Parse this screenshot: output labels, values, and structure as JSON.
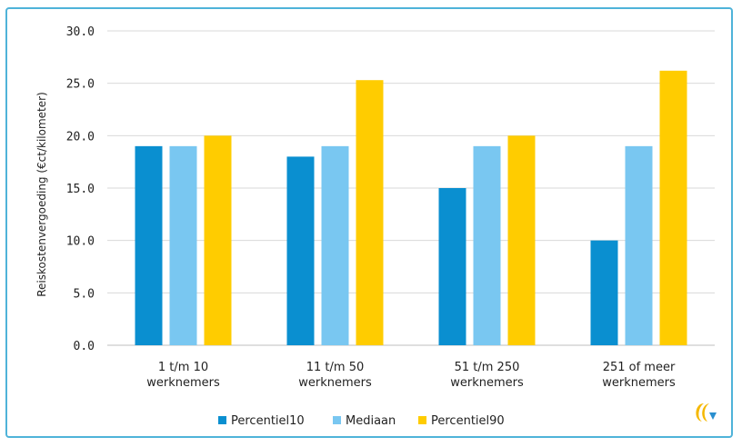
{
  "chart_data": {
    "type": "bar",
    "ylabel": "Reiskostenvergoeding (€ct/kilometer)",
    "xlabel": "",
    "ylim": [
      0,
      30
    ],
    "yticks": [
      "0.0",
      "5.0",
      "10.0",
      "15.0",
      "20.0",
      "25.0",
      "30.0"
    ],
    "categories": [
      [
        "1 t/m 10",
        "werknemers"
      ],
      [
        "11 t/m 50",
        "werknemers"
      ],
      [
        "51 t/m 250",
        "werknemers"
      ],
      [
        "251 of meer",
        "werknemers"
      ]
    ],
    "series": [
      {
        "name": "Percentiel10",
        "color": "#0a8fd0",
        "values": [
          19,
          18,
          15,
          10
        ]
      },
      {
        "name": "Mediaan",
        "color": "#79c7f1",
        "values": [
          19,
          19,
          19,
          19
        ]
      },
      {
        "name": "Percentiel90",
        "color": "#ffcc00",
        "values": [
          20,
          25.3,
          20,
          26.2
        ]
      }
    ],
    "grid": true,
    "legend": "bottom"
  },
  "logo": {
    "name": "brand-logo-icon"
  }
}
